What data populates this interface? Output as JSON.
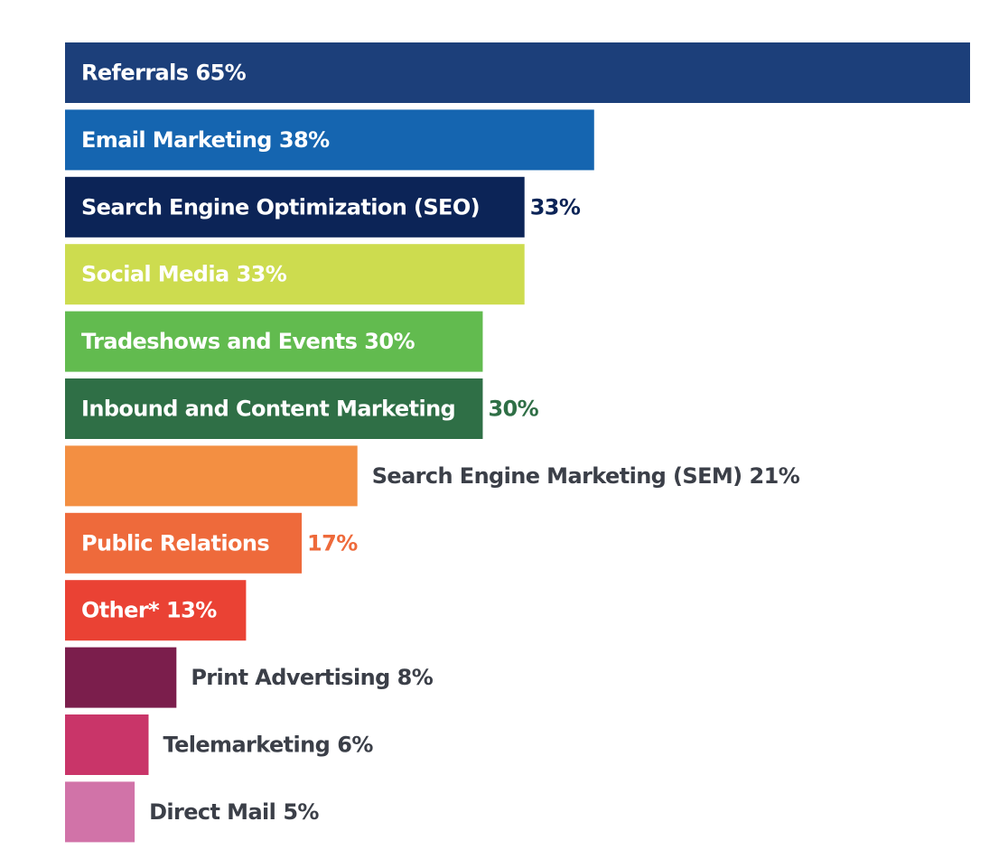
{
  "chart_data": {
    "type": "bar",
    "orientation": "horizontal",
    "categories": [
      "Referrals",
      "Email Marketing",
      "Search Engine Optimization (SEO)",
      "Social Media",
      "Tradeshows and Events",
      "Inbound and Content Marketing",
      "Search Engine Marketing (SEM)",
      "Public Relations",
      "Other*",
      "Print Advertising",
      "Telemarketing",
      "Direct Mail"
    ],
    "values": [
      65,
      38,
      33,
      33,
      30,
      30,
      21,
      17,
      13,
      8,
      6,
      5
    ],
    "value_labels": [
      "65%",
      "38%",
      "33%",
      "33%",
      "30%",
      "30%",
      "21%",
      "17%",
      "13%",
      "8%",
      "6%",
      "5%"
    ],
    "colors": [
      "#1c3f7a",
      "#1565b0",
      "#0c2457",
      "#cddc4f",
      "#62bb4f",
      "#2f6f46",
      "#f38f42",
      "#ee6a3b",
      "#ea4234",
      "#7b1e4c",
      "#c93569",
      "#d173a8"
    ]
  }
}
